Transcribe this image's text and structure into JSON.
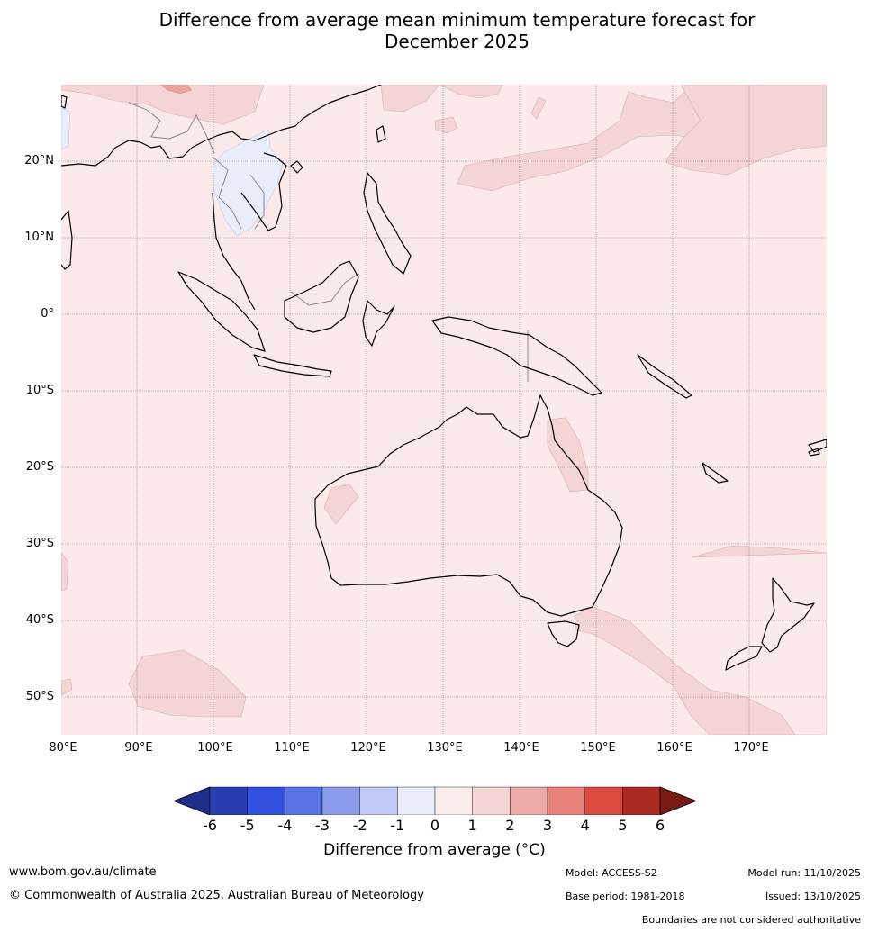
{
  "title_line1": "Difference from average mean minimum temperature forecast for",
  "title_line2": "December 2025",
  "lat_labels": [
    "20°N",
    "10°N",
    "0°",
    "10°S",
    "20°S",
    "30°S",
    "40°S",
    "50°S"
  ],
  "lon_labels": [
    "80°E",
    "90°E",
    "100°E",
    "110°E",
    "120°E",
    "130°E",
    "140°E",
    "150°E",
    "160°E",
    "170°E"
  ],
  "colorbar": {
    "title": "Difference from average (°C)",
    "ticks": [
      "-6",
      "-5",
      "-4",
      "-3",
      "-2",
      "-1",
      "0",
      "1",
      "2",
      "3",
      "4",
      "5",
      "6"
    ],
    "colors": [
      "#1f2e8a",
      "#2a3db0",
      "#3050e0",
      "#5a74e6",
      "#8a9ded",
      "#c0c8f5",
      "#e8ecfb",
      "#fcecec",
      "#f5d4d4",
      "#edaaa6",
      "#e8827a",
      "#db4a3e",
      "#aa2a22",
      "#7a1a14"
    ]
  },
  "footer": {
    "website": "www.bom.gov.au/climate",
    "copyright": "© Commonwealth of Australia 2025, Australian Bureau of Meteorology",
    "model": "Model: ACCESS-S2",
    "base_period": "Base period: 1981-2018",
    "model_run": "Model run: 11/10/2025",
    "issued": "Issued: 13/10/2025",
    "disclaimer": "Boundaries are not considered authoritative"
  }
}
